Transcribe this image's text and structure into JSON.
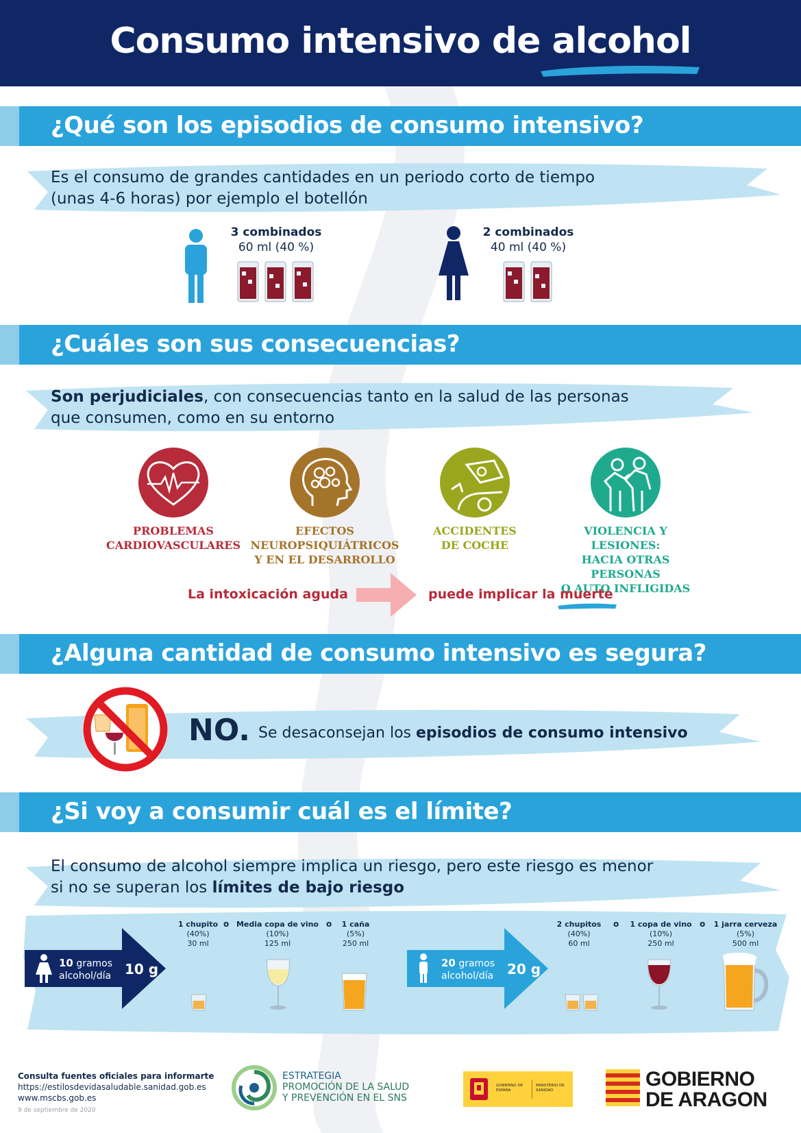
{
  "header": {
    "title": "Consumo intensivo de alcohol"
  },
  "section1": {
    "heading": "¿Qué son los episodios de consumo intensivo?",
    "text_line1": "Es el consumo de grandes cantidades en un periodo corto de tiempo",
    "text_line2": "(unas 4-6 horas) por ejemplo el botellón",
    "man": {
      "label": "3 combinados",
      "detail": "60 ml (40 %)",
      "glasses": 3
    },
    "woman": {
      "label": "2 combinados",
      "detail": "40 ml (40 %)",
      "glasses": 2
    }
  },
  "section2": {
    "heading": "¿Cuáles son sus consecuencias?",
    "text_bold": "Son perjudiciales",
    "text_rest": ", con consecuencias tanto en la salud de las personas",
    "text_line2": "que consumen, como en su entorno",
    "items": [
      {
        "line1": "PROBLEMAS",
        "line2": "CARDIOVASCULARES",
        "line3": "",
        "color": "#b72b3a"
      },
      {
        "line1": "EFECTOS",
        "line2": "NEUROPSIQUIÁTRICOS",
        "line3": "Y EN EL DESARROLLO",
        "color": "#a5742b"
      },
      {
        "line1": "ACCIDENTES",
        "line2": "DE COCHE",
        "line3": "",
        "color": "#9aa61e"
      },
      {
        "line1": "VIOLENCIA Y LESIONES:",
        "line2": "HACIA OTRAS PERSONAS",
        "line3": "O AUTO INFLIGIDAS",
        "color": "#1faa8e"
      }
    ],
    "intox_left": "La intoxicación aguda",
    "intox_right_prefix": "puede implicar la ",
    "intox_right_bold": "muerte"
  },
  "section3": {
    "heading": "¿Alguna cantidad de consumo intensivo es segura?",
    "answer": "NO.",
    "text_prefix": "Se desaconsejan los ",
    "text_bold": "episodios de consumo intensivo"
  },
  "section4": {
    "heading": "¿Si voy a consumir cuál es el límite?",
    "text_line1": "El consumo de alcohol siempre implica un riesgo, pero este riesgo es menor",
    "text_prefix": "si no se superan los ",
    "text_bold": "límites de bajo riesgo",
    "woman": {
      "grams_bold": "10",
      "grams_word": " gramos",
      "per_day": "alcohol/día",
      "badge": "10 g",
      "drinks": [
        {
          "name": "1 chupito",
          "pct": "(40%)",
          "vol": "30 ml"
        },
        {
          "name": "Media copa de vino",
          "pct": "(10%)",
          "vol": "125 ml"
        },
        {
          "name": "1 caña",
          "pct": "(5%)",
          "vol": "250 ml"
        }
      ]
    },
    "man": {
      "grams_bold": "20",
      "grams_word": " gramos",
      "per_day": "alcohol/día",
      "badge": "20 g",
      "drinks": [
        {
          "name": "2 chupitos",
          "pct": "(40%)",
          "vol": "60 ml"
        },
        {
          "name": "1 copa de vino",
          "pct": "(10%)",
          "vol": "250 ml"
        },
        {
          "name": "1 jarra cerveza",
          "pct": "(5%)",
          "vol": "500 ml"
        }
      ]
    },
    "or_word": "o"
  },
  "footer": {
    "consult": "Consulta fuentes oficiales para informarte",
    "url1": "https://estilosdevidasaludable.sanidad.gob.es",
    "url2": "www.mscbs.gob.es",
    "date": "9 de septiembre de 2020",
    "strategy_l1": "ESTRATEGIA",
    "strategy_l2": "PROMOCIÓN DE LA SALUD",
    "strategy_l3": "Y PREVENCIÓN EN EL SNS",
    "gov_spain": "GOBIERNO DE ESPAÑA",
    "ministry": "MINISTERIO DE SANIDAD",
    "aragon_l1": "GOBIERNO",
    "aragon_l2": "DE ARAGON"
  },
  "colors": {
    "navy": "#102766",
    "section_blue": "#2aa3db",
    "brush_blue": "#bfe3f2",
    "text_navy": "#13294b",
    "red": "#b72b3a"
  }
}
